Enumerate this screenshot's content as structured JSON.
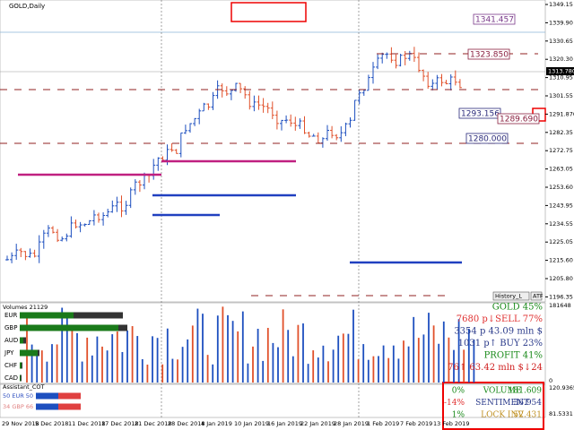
{
  "window": {
    "title": "GOLD,Daily",
    "price_axis": [
      "1349.15",
      "1339.90",
      "1330.65",
      "1320.30",
      "1310.95",
      "1301.55",
      "1291.870",
      "1282.35",
      "1272.75",
      "1263.05",
      "1253.60",
      "1243.95",
      "1234.55",
      "1225.05",
      "1215.60",
      "1205.80",
      "1196.35"
    ],
    "current_price": "1313.780",
    "price_tags": [
      "1341.457",
      "1323.850",
      "1293.156",
      "1289.690",
      "1280.000"
    ],
    "buttons": [
      "History_L",
      "ATF"
    ],
    "volumes": {
      "title": "Volumes 21129",
      "axis": [
        "181648",
        "0"
      ],
      "currencies": [
        "EUR",
        "GBP",
        "AUD",
        "JPY",
        "CHF",
        "CAD"
      ],
      "info": [
        "GOLD 45%",
        "7680 p↓SELL 77%",
        "3354 p  43.09 mln $",
        "1031 p↑ BUY 23%",
        "PROFIT 41%",
        "76↑ 63.42 mln $↓24"
      ]
    },
    "cot": {
      "title": "Assistant_COT",
      "rows": [
        "50 EUR 50",
        "34 GBP 66"
      ],
      "axis": [
        "120.9365",
        "81.5331"
      ],
      "table": [
        [
          "0%",
          "VOLUME",
          "181.609"
        ],
        [
          "-14%",
          "SENTIMENT",
          "36.954"
        ],
        [
          "1%",
          "LOCK INV",
          "52.431"
        ]
      ]
    },
    "dates": [
      "29 Nov 2018",
      "5 Dec 2018",
      "11 Dec 2018",
      "17 Dec 2018",
      "21 Dec 2018",
      "28 Dec 2018",
      "4 Jan 2019",
      "10 Jan 2019",
      "16 Jan 2019",
      "22 Jan 2019",
      "28 Jan 2019",
      "1 Feb 2019",
      "7 Feb 2019",
      "13 Feb 2019"
    ]
  }
}
